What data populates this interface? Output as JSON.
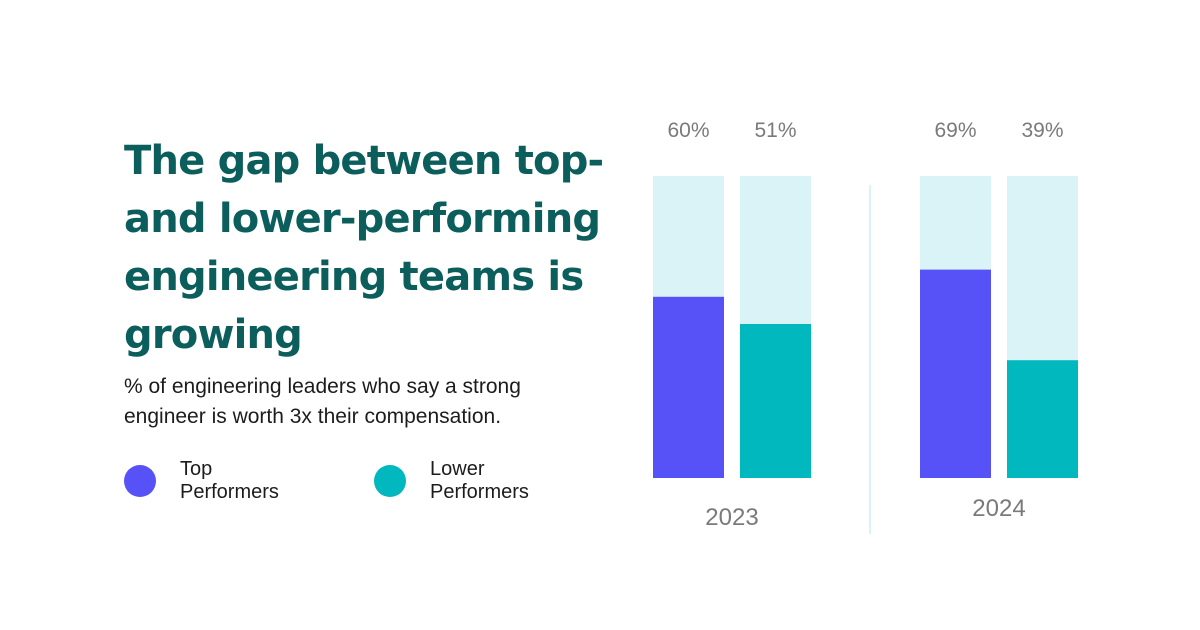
{
  "header": {
    "title": "The gap between top- and lower-performing engineering teams is growing",
    "subtitle": "% of engineering leaders who say a strong engineer is worth 3x their compensation."
  },
  "legend": [
    {
      "line1": "Top",
      "line2": "Performers",
      "color": "#5652f7"
    },
    {
      "line1": "Lower",
      "line2": "Performers",
      "color": "#00b8be"
    }
  ],
  "colors": {
    "track": "#daf3f6",
    "divider": "#daf3f6",
    "label": "#7a7a7a"
  },
  "chart_data": {
    "type": "bar",
    "stacked_background": "100%",
    "categories": [
      "2023",
      "2024"
    ],
    "series": [
      {
        "name": "Top Performers",
        "values": [
          60,
          69
        ],
        "labels": [
          "60%",
          "69%"
        ],
        "color": "#5652f7"
      },
      {
        "name": "Lower Performers",
        "values": [
          51,
          39
        ],
        "labels": [
          "51%",
          "39%"
        ],
        "color": "#00b8be"
      }
    ],
    "ylim": [
      0,
      100
    ],
    "grid": false,
    "legend": "bottom-left"
  }
}
